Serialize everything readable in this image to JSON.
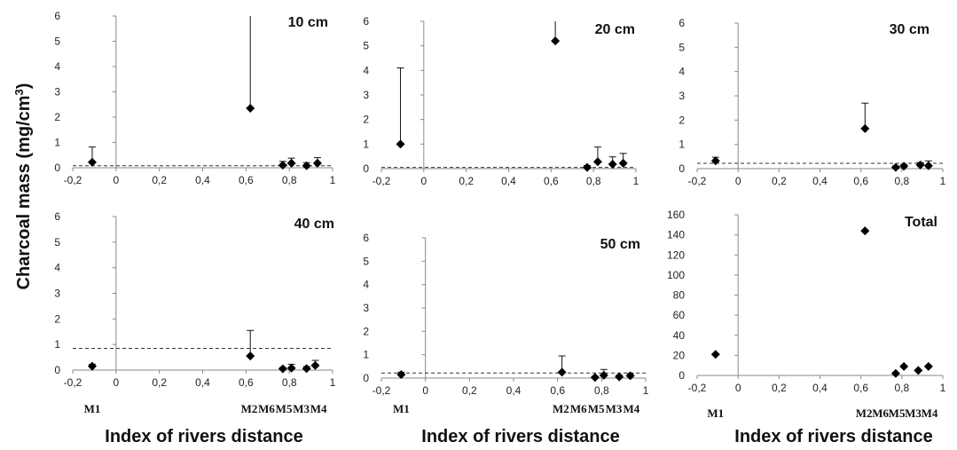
{
  "chart_data": {
    "ylabel_main": "Charcoal mass (mg/cm",
    "ylabel_sup": "3",
    "ylabel_end": ")",
    "xlabel": "Index of rivers distance",
    "x_ticks": [
      -0.2,
      0,
      0.2,
      0.4,
      0.6,
      0.8,
      1
    ],
    "x_tick_labels": [
      "-0,2",
      "0",
      "0,2",
      "0,4",
      "0,6",
      "0,8",
      "1"
    ],
    "site_labels": [
      "M1",
      "M2",
      "M6",
      "M5",
      "M3",
      "M4"
    ],
    "panels": [
      {
        "type": "scatter",
        "title": "10 cm",
        "xlim": [
          -0.2,
          1
        ],
        "ylim": [
          0,
          6
        ],
        "y_ticks": [
          0,
          1,
          2,
          3,
          4,
          5,
          6
        ],
        "points": [
          {
            "x": -0.11,
            "y": 0.22,
            "err": 0.6
          },
          {
            "x": 0.62,
            "y": 2.35,
            "err": 4.2
          },
          {
            "x": 0.77,
            "y": 0.1,
            "err": 0.15
          },
          {
            "x": 0.81,
            "y": 0.18,
            "err": 0.2
          },
          {
            "x": 0.88,
            "y": 0.08,
            "err": 0.12
          },
          {
            "x": 0.93,
            "y": 0.18,
            "err": 0.22
          }
        ],
        "reference_line": 0.08
      },
      {
        "type": "scatter",
        "title": "20 cm",
        "xlim": [
          -0.2,
          1
        ],
        "ylim": [
          0,
          6
        ],
        "y_ticks": [
          0,
          1,
          2,
          3,
          4,
          5,
          6
        ],
        "points": [
          {
            "x": -0.11,
            "y": 1.0,
            "err": 3.1
          },
          {
            "x": 0.62,
            "y": 5.2,
            "err": 3.0
          },
          {
            "x": 0.77,
            "y": 0.05,
            "err": 0.08
          },
          {
            "x": 0.82,
            "y": 0.28,
            "err": 0.6
          },
          {
            "x": 0.89,
            "y": 0.18,
            "err": 0.3
          },
          {
            "x": 0.94,
            "y": 0.22,
            "err": 0.4
          }
        ],
        "reference_line": 0.05
      },
      {
        "type": "scatter",
        "title": "30 cm",
        "xlim": [
          -0.2,
          1
        ],
        "ylim": [
          0,
          6
        ],
        "y_ticks": [
          0,
          1,
          2,
          3,
          4,
          5,
          6
        ],
        "points": [
          {
            "x": -0.11,
            "y": 0.32,
            "err": 0.15
          },
          {
            "x": 0.62,
            "y": 1.65,
            "err": 1.05
          },
          {
            "x": 0.77,
            "y": 0.05,
            "err": 0.06
          },
          {
            "x": 0.81,
            "y": 0.1,
            "err": 0.08
          },
          {
            "x": 0.89,
            "y": 0.15,
            "err": 0.1
          },
          {
            "x": 0.93,
            "y": 0.12,
            "err": 0.2
          }
        ],
        "reference_line": 0.22
      },
      {
        "type": "scatter",
        "title": "40 cm",
        "xlim": [
          -0.2,
          1
        ],
        "ylim": [
          0,
          6
        ],
        "y_ticks": [
          0,
          1,
          2,
          3,
          4,
          5,
          6
        ],
        "points": [
          {
            "x": -0.11,
            "y": 0.15,
            "err": 0.08
          },
          {
            "x": 0.62,
            "y": 0.55,
            "err": 1.0
          },
          {
            "x": 0.77,
            "y": 0.05,
            "err": 0.05
          },
          {
            "x": 0.81,
            "y": 0.08,
            "err": 0.15
          },
          {
            "x": 0.88,
            "y": 0.06,
            "err": 0.08
          },
          {
            "x": 0.92,
            "y": 0.18,
            "err": 0.2
          }
        ],
        "reference_line": 0.85
      },
      {
        "type": "scatter",
        "title": "50 cm",
        "xlim": [
          -0.2,
          1
        ],
        "ylim": [
          0,
          6
        ],
        "y_ticks": [
          0,
          1,
          2,
          3,
          4,
          5,
          6
        ],
        "points": [
          {
            "x": -0.11,
            "y": 0.15,
            "err": 0.1
          },
          {
            "x": 0.62,
            "y": 0.25,
            "err": 0.7
          },
          {
            "x": 0.77,
            "y": 0.03,
            "err": 0.05
          },
          {
            "x": 0.81,
            "y": 0.12,
            "err": 0.25
          },
          {
            "x": 0.88,
            "y": 0.05,
            "err": 0.08
          },
          {
            "x": 0.93,
            "y": 0.1,
            "err": 0.1
          }
        ],
        "reference_line": 0.22
      },
      {
        "type": "scatter",
        "title": "Total",
        "xlim": [
          -0.2,
          1
        ],
        "ylim": [
          0,
          160
        ],
        "y_ticks": [
          0,
          20,
          40,
          60,
          80,
          100,
          120,
          140,
          160
        ],
        "points": [
          {
            "x": -0.11,
            "y": 21,
            "err": 0
          },
          {
            "x": 0.62,
            "y": 144,
            "err": 0
          },
          {
            "x": 0.77,
            "y": 2,
            "err": 0
          },
          {
            "x": 0.81,
            "y": 9,
            "err": 0
          },
          {
            "x": 0.88,
            "y": 5,
            "err": 0
          },
          {
            "x": 0.93,
            "y": 9,
            "err": 0
          }
        ],
        "reference_line": null
      }
    ]
  }
}
